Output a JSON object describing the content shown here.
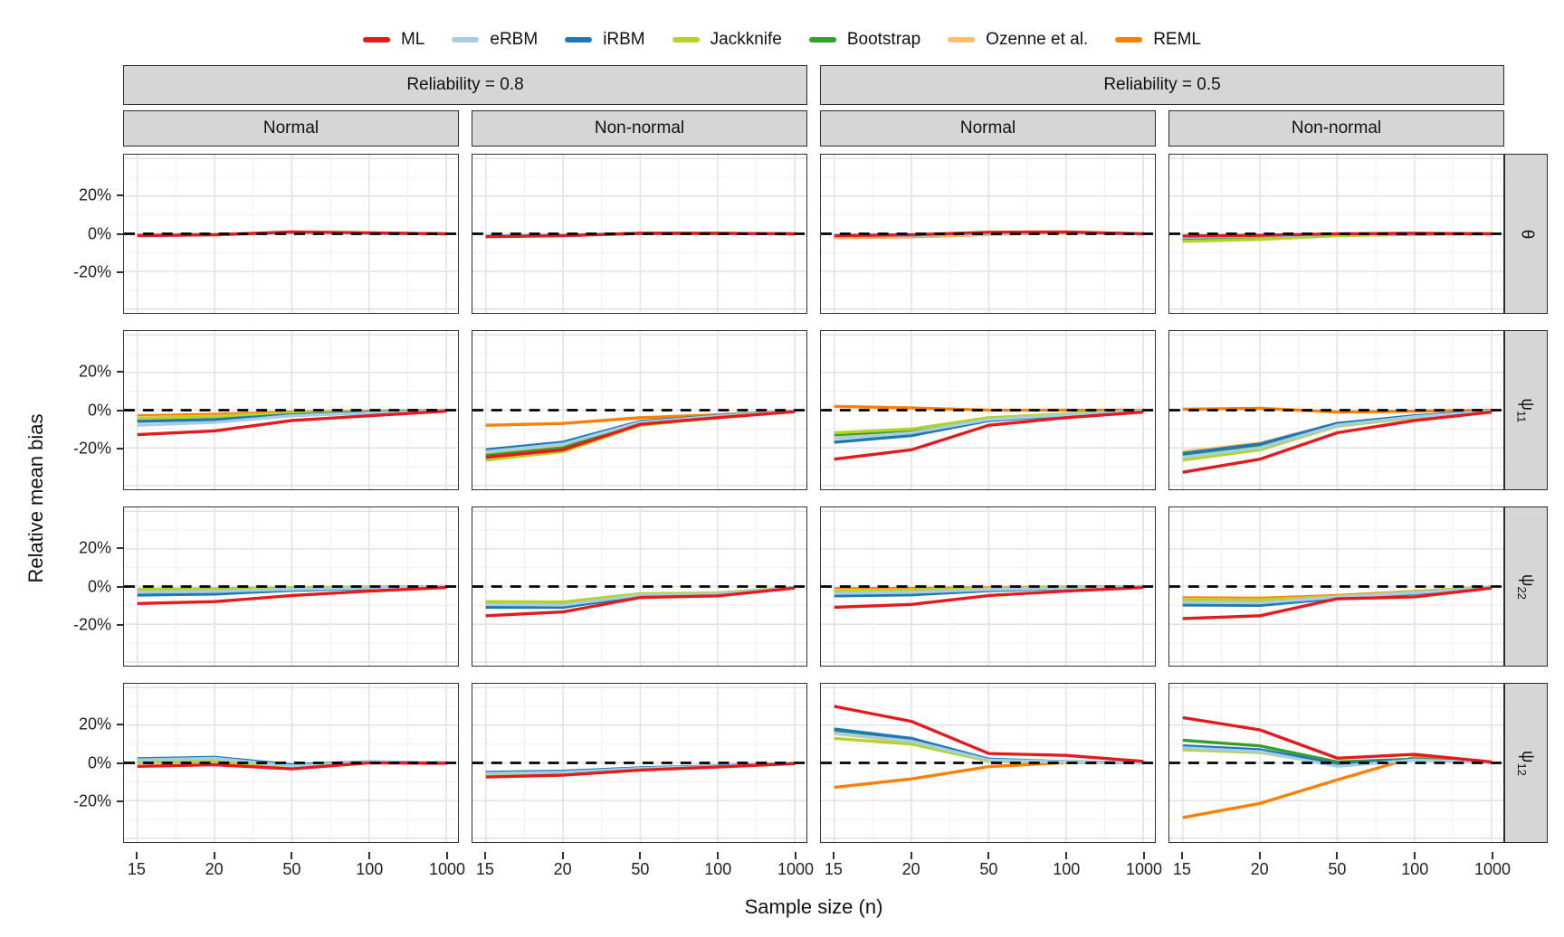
{
  "legend": {
    "items": [
      {
        "label": "ML",
        "color": "#e41a1c"
      },
      {
        "label": "eRBM",
        "color": "#a6cee3"
      },
      {
        "label": "iRBM",
        "color": "#1f78b4"
      },
      {
        "label": "Jackknife",
        "color": "#b4d327"
      },
      {
        "label": "Bootstrap",
        "color": "#33a02c"
      },
      {
        "label": "Ozenne et al.",
        "color": "#fdbf6f"
      },
      {
        "label": "REML",
        "color": "#ff7f00"
      }
    ]
  },
  "axes": {
    "y_title": "Relative mean bias",
    "x_title": "Sample size (n)",
    "y_ticks": [
      {
        "label": "20%",
        "value": 20
      },
      {
        "label": "0%",
        "value": 0
      },
      {
        "label": "-20%",
        "value": -20
      }
    ],
    "x_ticks": [
      "15",
      "20",
      "50",
      "100",
      "1000"
    ]
  },
  "facets": {
    "col_groups": [
      {
        "label": "Reliability = 0.8"
      },
      {
        "label": "Reliability = 0.5"
      }
    ],
    "col_subs": [
      "Normal",
      "Non-normal",
      "Normal",
      "Non-normal"
    ],
    "row_strips": [
      {
        "main": "θ",
        "sub": ""
      },
      {
        "main": "ψ",
        "sub": "11"
      },
      {
        "main": "ψ",
        "sub": "22"
      },
      {
        "main": "ψ",
        "sub": "12"
      }
    ]
  },
  "chart_data": {
    "type": "line",
    "x": [
      15,
      20,
      50,
      100,
      1000
    ],
    "x_tick_labels": [
      "15",
      "20",
      "50",
      "100",
      "1000"
    ],
    "ylim": [
      -42,
      42
    ],
    "y_unit": "%",
    "grid": "on",
    "legend_position": "top",
    "zero_line": "dashed black at 0%",
    "series_names": [
      "ML",
      "eRBM",
      "iRBM",
      "Jackknife",
      "Bootstrap",
      "Ozenne et al.",
      "REML"
    ],
    "panels": [
      {
        "row": "θ",
        "col_group": "Reliability = 0.8",
        "col": "Normal",
        "series": {
          "ML": [
            -1,
            -0.5,
            1,
            0.5,
            0
          ],
          "eRBM": [
            -0.7,
            -0.4,
            0.5,
            0.3,
            0
          ],
          "iRBM": [
            -0.7,
            -0.4,
            0.5,
            0.3,
            0
          ],
          "Jackknife": [
            -0.8,
            -0.4,
            0.6,
            0.3,
            0
          ],
          "Bootstrap": [
            -0.8,
            -0.4,
            0.6,
            0.3,
            0
          ],
          "Ozenne et al.": [
            -0.9,
            -0.5,
            0.7,
            0.4,
            0
          ],
          "REML": [
            -0.9,
            -0.5,
            0.7,
            0.4,
            0
          ]
        }
      },
      {
        "row": "θ",
        "col_group": "Reliability = 0.8",
        "col": "Non-normal",
        "series": {
          "ML": [
            -1.5,
            -1,
            0.3,
            0.3,
            0
          ],
          "eRBM": [
            -1.2,
            -0.8,
            0.2,
            0.2,
            0
          ],
          "iRBM": [
            -1.2,
            -0.8,
            0.2,
            0.2,
            0
          ],
          "Jackknife": [
            -1.3,
            -0.9,
            0.2,
            0.2,
            0
          ],
          "Bootstrap": [
            -1.3,
            -0.9,
            0.2,
            0.2,
            0
          ],
          "Ozenne et al.": [
            -1.4,
            -0.9,
            0.3,
            0.2,
            0
          ],
          "REML": [
            -1.4,
            -0.9,
            0.3,
            0.2,
            0
          ]
        }
      },
      {
        "row": "θ",
        "col_group": "Reliability = 0.5",
        "col": "Normal",
        "series": {
          "ML": [
            -1,
            -0.5,
            0.8,
            1,
            0
          ],
          "eRBM": [
            -1.2,
            -0.8,
            0.3,
            0.7,
            0
          ],
          "iRBM": [
            -1.2,
            -0.8,
            0.3,
            0.7,
            0
          ],
          "Jackknife": [
            -1.2,
            -0.8,
            0.3,
            0.7,
            0
          ],
          "Bootstrap": [
            -1.2,
            -0.8,
            0.3,
            0.7,
            0
          ],
          "Ozenne et al.": [
            -1.8,
            -1.2,
            -0.2,
            0.5,
            0
          ],
          "REML": [
            -2,
            -1.5,
            -0.3,
            0.5,
            0
          ]
        }
      },
      {
        "row": "θ",
        "col_group": "Reliability = 0.5",
        "col": "Non-normal",
        "series": {
          "ML": [
            -1.2,
            -0.8,
            0,
            0.3,
            0
          ],
          "eRBM": [
            -1.8,
            -1.2,
            -0.3,
            0,
            0
          ],
          "iRBM": [
            -1.8,
            -1.2,
            -0.3,
            0,
            0
          ],
          "Jackknife": [
            -4,
            -3,
            -1,
            -0.3,
            0
          ],
          "Bootstrap": [
            -3.3,
            -2.5,
            -0.8,
            -0.3,
            0
          ],
          "Ozenne et al.": [
            -1.5,
            -1,
            -0.3,
            0,
            0
          ],
          "REML": [
            -1.5,
            -1,
            -0.3,
            0,
            0
          ]
        }
      },
      {
        "row": "ψ11",
        "col_group": "Reliability = 0.8",
        "col": "Normal",
        "series": {
          "ML": [
            -13,
            -11,
            -5.5,
            -3,
            -0.5
          ],
          "eRBM": [
            -8,
            -6.5,
            -3,
            -1.5,
            -0.2
          ],
          "iRBM": [
            -6,
            -5,
            -2.5,
            -1.2,
            -0.2
          ],
          "Jackknife": [
            -4.5,
            -3.5,
            -1.5,
            -0.8,
            0
          ],
          "Bootstrap": [
            -5,
            -4,
            -2,
            -1,
            0
          ],
          "Ozenne et al.": [
            -4,
            -3.2,
            -1.5,
            -0.8,
            0
          ],
          "REML": [
            -3,
            -2.2,
            -1,
            -0.5,
            0
          ]
        }
      },
      {
        "row": "ψ11",
        "col_group": "Reliability = 0.8",
        "col": "Non-normal",
        "series": {
          "ML": [
            -25,
            -21,
            -7.5,
            -4,
            -0.8
          ],
          "eRBM": [
            -22,
            -18,
            -6.5,
            -3.2,
            -0.5
          ],
          "iRBM": [
            -21,
            -17,
            -6,
            -3,
            -0.5
          ],
          "Jackknife": [
            -26.5,
            -22,
            -8,
            -4,
            -0.5
          ],
          "Bootstrap": [
            -24,
            -20,
            -7,
            -3.5,
            -0.5
          ],
          "Ozenne et al.": [
            -23,
            -19,
            -7,
            -3.5,
            -0.5
          ],
          "REML": [
            -8,
            -7,
            -4,
            -2.5,
            -0.5
          ]
        }
      },
      {
        "row": "ψ11",
        "col_group": "Reliability = 0.5",
        "col": "Normal",
        "series": {
          "ML": [
            -26,
            -21,
            -8,
            -4,
            -1
          ],
          "eRBM": [
            -15,
            -12,
            -5,
            -2.5,
            -0.3
          ],
          "iRBM": [
            -17,
            -13.5,
            -5.5,
            -3,
            -0.3
          ],
          "Jackknife": [
            -12,
            -10,
            -4,
            -2,
            -0.2
          ],
          "Bootstrap": [
            -13,
            -10.8,
            -4.3,
            -2.2,
            -0.2
          ],
          "Ozenne et al.": [
            -13.5,
            -11.2,
            -4.5,
            -2.3,
            -0.2
          ],
          "REML": [
            2,
            1.2,
            0,
            0,
            0
          ]
        }
      },
      {
        "row": "ψ11",
        "col_group": "Reliability = 0.5",
        "col": "Non-normal",
        "series": {
          "ML": [
            -33,
            -26,
            -12,
            -5.5,
            -1
          ],
          "eRBM": [
            -25,
            -20,
            -8,
            -3.5,
            -0.5
          ],
          "iRBM": [
            -23,
            -18,
            -7,
            -3,
            -0.5
          ],
          "Jackknife": [
            -26.5,
            -21,
            -8.5,
            -4,
            -0.5
          ],
          "Bootstrap": [
            -24,
            -19,
            -7.5,
            -3.3,
            -0.5
          ],
          "Ozenne et al.": [
            -22,
            -17.5,
            -7,
            -3,
            -0.5
          ],
          "REML": [
            0.5,
            1,
            -1,
            -0.5,
            0
          ]
        }
      },
      {
        "row": "ψ22",
        "col_group": "Reliability = 0.8",
        "col": "Normal",
        "series": {
          "ML": [
            -9,
            -8,
            -4.8,
            -2.4,
            -0.5
          ],
          "eRBM": [
            -3,
            -2.6,
            -1.4,
            -0.7,
            0
          ],
          "iRBM": [
            -4.5,
            -4,
            -2,
            -1,
            -0.2
          ],
          "Jackknife": [
            -1.5,
            -1.2,
            -0.6,
            -0.2,
            0
          ],
          "Bootstrap": [
            -2,
            -1.6,
            -0.9,
            -0.4,
            0
          ],
          "Ozenne et al.": [
            -2,
            -1.6,
            -0.9,
            -0.4,
            0
          ],
          "REML": [
            -2.2,
            -1.8,
            -1,
            -0.5,
            0
          ]
        }
      },
      {
        "row": "ψ22",
        "col_group": "Reliability = 0.8",
        "col": "Non-normal",
        "series": {
          "ML": [
            -15.5,
            -13.5,
            -5.8,
            -5,
            -0.8
          ],
          "eRBM": [
            -9.5,
            -9.8,
            -4.5,
            -4,
            -0.6
          ],
          "iRBM": [
            -11,
            -11,
            -5,
            -4.4,
            -0.6
          ],
          "Jackknife": [
            -8,
            -8.2,
            -3.8,
            -3.4,
            -0.5
          ],
          "Bootstrap": [
            -8.8,
            -9,
            -4.2,
            -3.8,
            -0.5
          ],
          "Ozenne et al.": [
            -8.8,
            -9,
            -4.2,
            -3.8,
            -0.5
          ],
          "REML": [
            -8.5,
            -8.7,
            -4,
            -3.6,
            -0.5
          ]
        }
      },
      {
        "row": "ψ22",
        "col_group": "Reliability = 0.5",
        "col": "Normal",
        "series": {
          "ML": [
            -11,
            -9.5,
            -4.8,
            -2.4,
            -0.5
          ],
          "eRBM": [
            -3.6,
            -3.1,
            -1.6,
            -0.8,
            0
          ],
          "iRBM": [
            -5,
            -4.4,
            -2.2,
            -1,
            -0.2
          ],
          "Jackknife": [
            -2.4,
            -2,
            -1.1,
            -0.5,
            0
          ],
          "Bootstrap": [
            -3,
            -2.6,
            -1.4,
            -0.7,
            0
          ],
          "Ozenne et al.": [
            -2,
            -1.8,
            -1,
            -0.5,
            0
          ],
          "REML": [
            -1.2,
            -1,
            -0.6,
            -0.3,
            0
          ]
        }
      },
      {
        "row": "ψ22",
        "col_group": "Reliability = 0.5",
        "col": "Non-normal",
        "series": {
          "ML": [
            -17,
            -15.5,
            -6.5,
            -5.5,
            -0.8
          ],
          "eRBM": [
            -8.4,
            -8.7,
            -5.6,
            -3.3,
            -0.4
          ],
          "iRBM": [
            -9.8,
            -10,
            -6.2,
            -3.7,
            -0.4
          ],
          "Jackknife": [
            -7,
            -7.3,
            -5.3,
            -3,
            -0.3
          ],
          "Bootstrap": [
            -8.8,
            -9,
            -5.8,
            -3.4,
            -0.4
          ],
          "Ozenne et al.": [
            -6.8,
            -7,
            -5.2,
            -3,
            -0.3
          ],
          "REML": [
            -6,
            -6.2,
            -4.8,
            -2.6,
            -0.2
          ]
        }
      },
      {
        "row": "ψ12",
        "col_group": "Reliability = 0.8",
        "col": "Normal",
        "series": {
          "ML": [
            -1.8,
            -1,
            -3.2,
            0,
            -0.2
          ],
          "eRBM": [
            1.6,
            2.4,
            -1.6,
            0.5,
            0
          ],
          "iRBM": [
            2.2,
            3,
            -1,
            0.6,
            0
          ],
          "Jackknife": [
            0.5,
            1,
            -2.2,
            0.4,
            0
          ],
          "Bootstrap": [
            0.5,
            1,
            -2.2,
            0.4,
            0
          ],
          "Ozenne et al.": [
            0.2,
            0.8,
            -2.4,
            0.3,
            0
          ],
          "REML": [
            0.2,
            0.8,
            -2.4,
            0.3,
            0
          ]
        }
      },
      {
        "row": "ψ12",
        "col_group": "Reliability = 0.8",
        "col": "Non-normal",
        "series": {
          "ML": [
            -7.5,
            -6.5,
            -3.8,
            -2.2,
            -0.4
          ],
          "eRBM": [
            -5.6,
            -5,
            -3,
            -1.8,
            -0.2
          ],
          "iRBM": [
            -5,
            -4.4,
            -2.6,
            -1.6,
            -0.2
          ],
          "Jackknife": [
            -6,
            -5.4,
            -3.2,
            -2,
            -0.2
          ],
          "Bootstrap": [
            -6,
            -5.4,
            -3.2,
            -2,
            -0.2
          ],
          "Ozenne et al.": [
            -6.3,
            -5.6,
            -3.3,
            -2,
            -0.2
          ],
          "REML": [
            -6.3,
            -5.6,
            -3.3,
            -2,
            -0.2
          ]
        }
      },
      {
        "row": "ψ12",
        "col_group": "Reliability = 0.5",
        "col": "Normal",
        "series": {
          "ML": [
            30,
            22,
            5,
            4,
            0.8
          ],
          "eRBM": [
            15.8,
            11.5,
            1.5,
            0.5,
            0
          ],
          "iRBM": [
            18,
            13,
            2,
            0.6,
            0
          ],
          "Jackknife": [
            13,
            10,
            1,
            0.4,
            0
          ],
          "Bootstrap": [
            17,
            12.3,
            1.8,
            0.6,
            0
          ],
          "Ozenne et al.": [
            15.5,
            11.2,
            1.4,
            0.5,
            0
          ],
          "REML": [
            -13,
            -8.5,
            -2,
            0.2,
            0
          ]
        }
      },
      {
        "row": "ψ12",
        "col_group": "Reliability = 0.5",
        "col": "Non-normal",
        "series": {
          "ML": [
            24,
            17.5,
            2.5,
            4.5,
            0.5
          ],
          "eRBM": [
            8,
            6,
            -1.8,
            1.5,
            0.2
          ],
          "iRBM": [
            9,
            7,
            -0.5,
            1.8,
            0.2
          ],
          "Jackknife": [
            7,
            5.5,
            -0.8,
            1.6,
            0.2
          ],
          "Bootstrap": [
            12,
            9,
            0.5,
            2,
            0.2
          ],
          "Ozenne et al.": [
            8.2,
            6.3,
            -1.2,
            1.6,
            0.2
          ],
          "REML": [
            -29,
            -21.5,
            -9,
            3,
            0.3
          ]
        }
      }
    ]
  }
}
